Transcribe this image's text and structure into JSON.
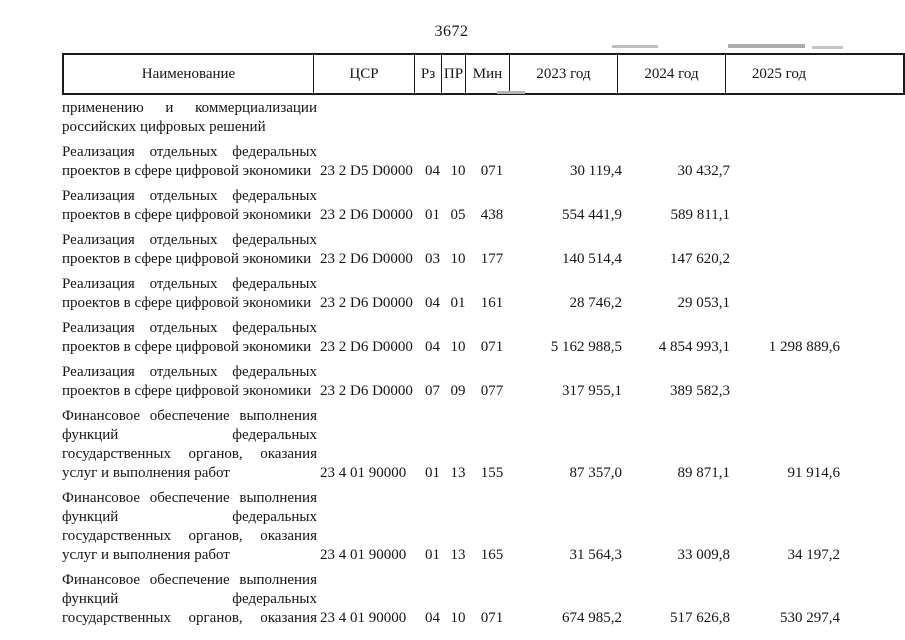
{
  "page": {
    "number": "3672"
  },
  "table": {
    "columns": [
      "Наименование",
      "ЦСР",
      "Рз",
      "ПР",
      "Мин",
      "2023 год",
      "2024 год",
      "2025 год"
    ],
    "rows": [
      {
        "name_lines": [
          {
            "t": "применению и коммерциализации",
            "j": true
          },
          {
            "t": "российских цифровых решений",
            "j": false
          }
        ],
        "csr": "",
        "rz": "",
        "pr": "",
        "min": "",
        "y2023": "",
        "y2024": "",
        "y2025": ""
      },
      {
        "name_lines": [
          {
            "t": "Реализация отдельных федеральных",
            "j": true
          },
          {
            "t": "проектов в сфере цифровой экономики",
            "j": false
          }
        ],
        "csr": "23 2 D5 D0000",
        "rz": "04",
        "pr": "10",
        "min": "071",
        "y2023": "30 119,4",
        "y2024": "30 432,7",
        "y2025": ""
      },
      {
        "name_lines": [
          {
            "t": "Реализация отдельных федеральных",
            "j": true
          },
          {
            "t": "проектов в сфере цифровой экономики",
            "j": false
          }
        ],
        "csr": "23 2 D6 D0000",
        "rz": "01",
        "pr": "05",
        "min": "438",
        "y2023": "554 441,9",
        "y2024": "589 811,1",
        "y2025": ""
      },
      {
        "name_lines": [
          {
            "t": "Реализация отдельных федеральных",
            "j": true
          },
          {
            "t": "проектов в сфере цифровой экономики",
            "j": false
          }
        ],
        "csr": "23 2 D6 D0000",
        "rz": "03",
        "pr": "10",
        "min": "177",
        "y2023": "140 514,4",
        "y2024": "147 620,2",
        "y2025": ""
      },
      {
        "name_lines": [
          {
            "t": "Реализация отдельных федеральных",
            "j": true
          },
          {
            "t": "проектов в сфере цифровой экономики",
            "j": false
          }
        ],
        "csr": "23 2 D6 D0000",
        "rz": "04",
        "pr": "01",
        "min": "161",
        "y2023": "28 746,2",
        "y2024": "29 053,1",
        "y2025": ""
      },
      {
        "name_lines": [
          {
            "t": "Реализация отдельных федеральных",
            "j": true
          },
          {
            "t": "проектов в сфере цифровой экономики",
            "j": false
          }
        ],
        "csr": "23 2 D6 D0000",
        "rz": "04",
        "pr": "10",
        "min": "071",
        "y2023": "5 162 988,5",
        "y2024": "4 854 993,1",
        "y2025": "1 298 889,6"
      },
      {
        "name_lines": [
          {
            "t": "Реализация отдельных федеральных",
            "j": true
          },
          {
            "t": "проектов в сфере цифровой экономики",
            "j": false
          }
        ],
        "csr": "23 2 D6 D0000",
        "rz": "07",
        "pr": "09",
        "min": "077",
        "y2023": "317 955,1",
        "y2024": "389 582,3",
        "y2025": ""
      },
      {
        "name_lines": [
          {
            "t": "Финансовое обеспечение выполнения",
            "j": true
          },
          {
            "t": "функций федеральных",
            "j": true
          },
          {
            "t": "государственных органов, оказания",
            "j": true
          },
          {
            "t": "услуг и выполнения работ",
            "j": false
          }
        ],
        "csr": "23 4 01 90000",
        "rz": "01",
        "pr": "13",
        "min": "155",
        "y2023": "87 357,0",
        "y2024": "89 871,1",
        "y2025": "91 914,6"
      },
      {
        "name_lines": [
          {
            "t": "Финансовое обеспечение выполнения",
            "j": true
          },
          {
            "t": "функций федеральных",
            "j": true
          },
          {
            "t": "государственных органов, оказания",
            "j": true
          },
          {
            "t": "услуг и выполнения работ",
            "j": false
          }
        ],
        "csr": "23 4 01 90000",
        "rz": "01",
        "pr": "13",
        "min": "165",
        "y2023": "31 564,3",
        "y2024": "33 009,8",
        "y2025": "34 197,2"
      },
      {
        "name_lines": [
          {
            "t": "Финансовое обеспечение выполнения",
            "j": true
          },
          {
            "t": "функций федеральных",
            "j": true
          },
          {
            "t": "государственных органов, оказания",
            "j": true
          }
        ],
        "csr": "23 4 01 90000",
        "rz": "04",
        "pr": "10",
        "min": "071",
        "y2023": "674 985,2",
        "y2024": "517 626,8",
        "y2025": "530 297,4"
      }
    ]
  }
}
